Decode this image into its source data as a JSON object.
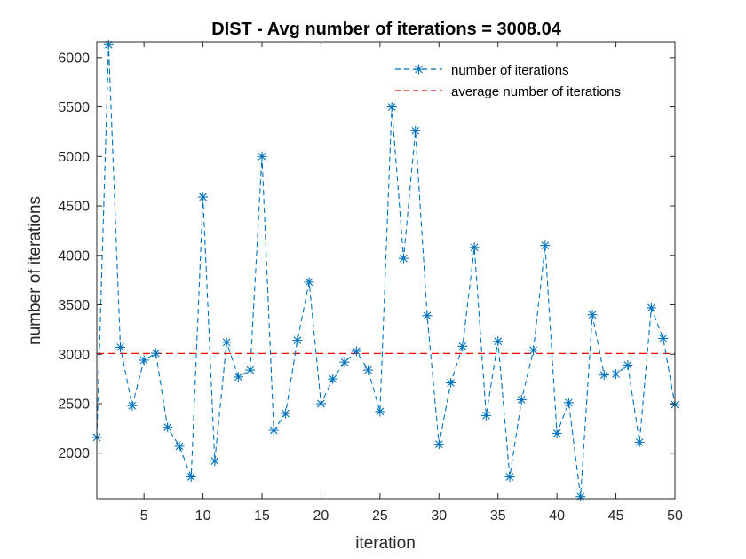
{
  "chart_data": {
    "type": "line",
    "title": "DIST - Avg number of iterations = 3008.04",
    "xlabel": "iteration",
    "ylabel": "number of iterations",
    "xlim": [
      1,
      50
    ],
    "ylim": [
      1540,
      6160
    ],
    "xticks": [
      5,
      10,
      15,
      20,
      25,
      30,
      35,
      40,
      45,
      50
    ],
    "yticks": [
      2000,
      2500,
      3000,
      3500,
      4000,
      4500,
      5000,
      5500,
      6000
    ],
    "grid": false,
    "legend_position": "top-right",
    "x": [
      1,
      2,
      3,
      4,
      5,
      6,
      7,
      8,
      9,
      10,
      11,
      12,
      13,
      14,
      15,
      16,
      17,
      18,
      19,
      20,
      21,
      22,
      23,
      24,
      25,
      26,
      27,
      28,
      29,
      30,
      31,
      32,
      33,
      34,
      35,
      36,
      37,
      38,
      39,
      40,
      41,
      42,
      43,
      44,
      45,
      46,
      47,
      48,
      49,
      50
    ],
    "series": [
      {
        "name": "number of iterations",
        "color": "#0072BD",
        "marker": "asterisk",
        "line_style": "dashed",
        "values": [
          2160,
          6130,
          3070,
          2480,
          2940,
          3010,
          2260,
          2070,
          1760,
          4590,
          1920,
          3120,
          2770,
          2840,
          5000,
          2230,
          2400,
          3140,
          3730,
          2500,
          2750,
          2920,
          3030,
          2840,
          2420,
          5500,
          3970,
          5260,
          3390,
          2090,
          2710,
          3080,
          4080,
          2380,
          3130,
          1760,
          2540,
          3040,
          4100,
          2200,
          2510,
          1560,
          3400,
          2790,
          2800,
          2890,
          2110,
          3470,
          3160,
          2490
        ]
      },
      {
        "name": "average number of iterations",
        "color": "#FF0000",
        "line_style": "dashed",
        "value": 3008.04
      }
    ]
  }
}
